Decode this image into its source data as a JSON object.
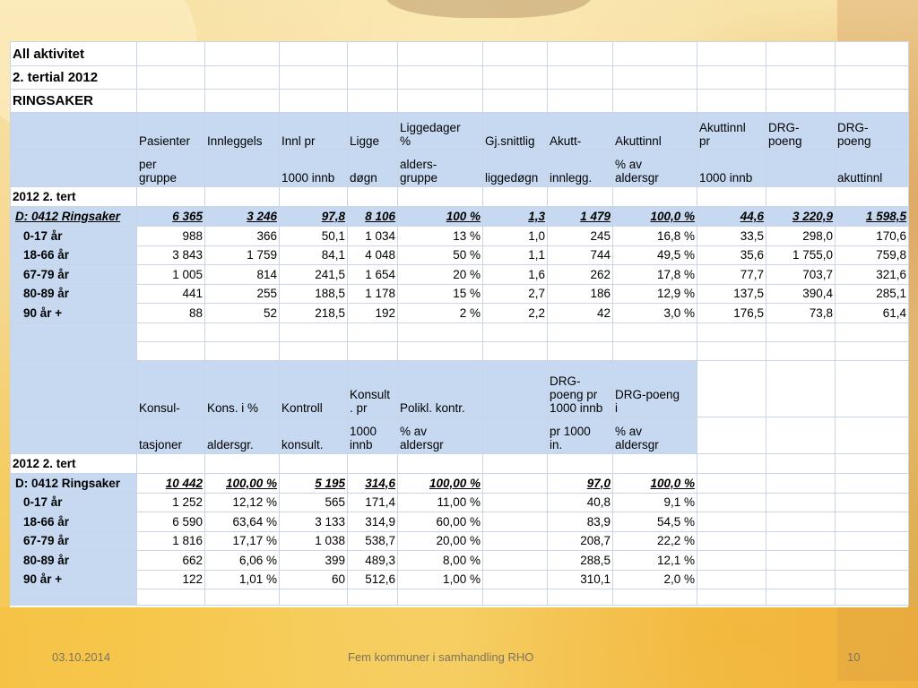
{
  "title1": "All aktivitet",
  "title2": "2. tertial 2012",
  "title3": "RINGSAKER",
  "t1": {
    "h1": [
      "Pasienter",
      "Innleggels",
      "Innl pr",
      "Ligge",
      "Liggedager\n%",
      "Gj.snittlig",
      "Akutt-",
      "Akuttinnl",
      "Akuttinnl\npr",
      "DRG-\npoeng",
      "DRG-\npoeng"
    ],
    "h2": [
      "per\ngruppe",
      "",
      "1000 innb",
      "døgn",
      "alders-\ngruppe",
      "liggedøgn",
      "innlegg.",
      "% av\naldersgr",
      "1000 innb",
      "",
      "akuttinnl"
    ],
    "section": "2012  2. tert",
    "total": {
      "label": "D: 0412 Ringsaker",
      "vals": [
        "6 365",
        "3 246",
        "97,8",
        "8 106",
        "100 %",
        "1,3",
        "1 479",
        "100,0 %",
        "44,6",
        "3 220,9",
        "1 598,5"
      ]
    },
    "rows": [
      {
        "label": "0-17 år",
        "vals": [
          "988",
          "366",
          "50,1",
          "1 034",
          "13 %",
          "1,0",
          "245",
          "16,8 %",
          "33,5",
          "298,0",
          "170,6"
        ]
      },
      {
        "label": "18-66 år",
        "vals": [
          "3 843",
          "1 759",
          "84,1",
          "4 048",
          "50 %",
          "1,1",
          "744",
          "49,5 %",
          "35,6",
          "1 755,0",
          "759,8"
        ]
      },
      {
        "label": "67-79 år",
        "vals": [
          "1 005",
          "814",
          "241,5",
          "1 654",
          "20 %",
          "1,6",
          "262",
          "17,8 %",
          "77,7",
          "703,7",
          "321,6"
        ]
      },
      {
        "label": "80-89 år",
        "vals": [
          "441",
          "255",
          "188,5",
          "1 178",
          "15 %",
          "2,7",
          "186",
          "12,9 %",
          "137,5",
          "390,4",
          "285,1"
        ]
      },
      {
        "label": "90 år +",
        "vals": [
          "88",
          "52",
          "218,5",
          "192",
          "2 %",
          "2,2",
          "42",
          "3,0 %",
          "176,5",
          "73,8",
          "61,4"
        ]
      }
    ]
  },
  "t2": {
    "h1": [
      "Konsul-",
      "Kons. i %",
      "Kontroll",
      "Konsult\n. pr",
      "Polikl. kontr.",
      "",
      "DRG-\npoeng pr\n1000 innb",
      "DRG-poeng\ni"
    ],
    "h2": [
      "tasjoner",
      "aldersgr.",
      "konsult.",
      "1000\ninnb",
      "% av\naldersgr",
      "",
      "pr 1000\nin.",
      "% av\naldersgr"
    ],
    "section": "2012 2. tert",
    "total": {
      "label": "D: 0412 Ringsaker",
      "vals": [
        "10 442",
        "100,00 %",
        "5 195",
        "314,6",
        "100,00 %",
        "",
        "97,0",
        "100,0 %"
      ]
    },
    "rows": [
      {
        "label": "0-17 år",
        "vals": [
          "1 252",
          "12,12 %",
          "565",
          "171,4",
          "11,00 %",
          "",
          "40,8",
          "9,1 %"
        ]
      },
      {
        "label": "18-66 år",
        "vals": [
          "6 590",
          "63,64 %",
          "3 133",
          "314,9",
          "60,00 %",
          "",
          "83,9",
          "54,5 %"
        ]
      },
      {
        "label": "67-79 år",
        "vals": [
          "1 816",
          "17,17 %",
          "1 038",
          "538,7",
          "20,00 %",
          "",
          "208,7",
          "22,2 %"
        ]
      },
      {
        "label": "80-89 år",
        "vals": [
          "662",
          "6,06 %",
          "399",
          "489,3",
          "8,00 %",
          "",
          "288,5",
          "12,1 %"
        ]
      },
      {
        "label": "90 år +",
        "vals": [
          "122",
          "1,01 %",
          "60",
          "512,6",
          "1,00 %",
          "",
          "310,1",
          "2,0 %"
        ]
      }
    ]
  },
  "footer": {
    "date": "03.10.2014",
    "center": "Fem kommuner i samhandling RHO",
    "page": "10"
  }
}
